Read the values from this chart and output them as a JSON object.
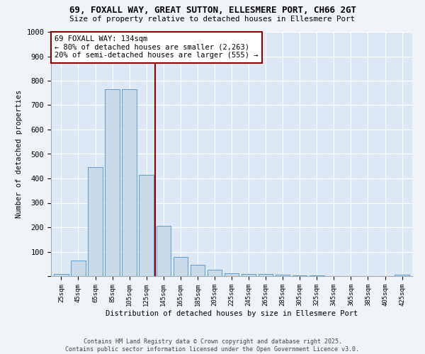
{
  "title_line1": "69, FOXALL WAY, GREAT SUTTON, ELLESMERE PORT, CH66 2GT",
  "title_line2": "Size of property relative to detached houses in Ellesmere Port",
  "xlabel": "Distribution of detached houses by size in Ellesmere Port",
  "ylabel": "Number of detached properties",
  "categories": [
    "25sqm",
    "45sqm",
    "65sqm",
    "85sqm",
    "105sqm",
    "125sqm",
    "145sqm",
    "165sqm",
    "185sqm",
    "205sqm",
    "225sqm",
    "245sqm",
    "265sqm",
    "285sqm",
    "305sqm",
    "325sqm",
    "345sqm",
    "365sqm",
    "385sqm",
    "405sqm",
    "425sqm"
  ],
  "values": [
    8,
    65,
    445,
    765,
    765,
    415,
    205,
    78,
    45,
    25,
    12,
    10,
    8,
    5,
    3,
    2,
    1,
    1,
    0,
    0,
    5
  ],
  "bar_color": "#c9d9e8",
  "bar_edge_color": "#5b9bd5",
  "vline_x": 5.5,
  "annotation_line1": "69 FOXALL WAY: 134sqm",
  "annotation_line2": "← 80% of detached houses are smaller (2,263)",
  "annotation_line3": "20% of semi-detached houses are larger (555) →",
  "annotation_box_color": "#ffffff",
  "annotation_box_edge": "#8b0000",
  "vline_color": "#8b0000",
  "bg_color": "#dce8f5",
  "fig_bg_color": "#f0f4f8",
  "ylim": [
    0,
    1000
  ],
  "yticks": [
    0,
    100,
    200,
    300,
    400,
    500,
    600,
    700,
    800,
    900,
    1000
  ],
  "footer_line1": "Contains HM Land Registry data © Crown copyright and database right 2025.",
  "footer_line2": "Contains public sector information licensed under the Open Government Licence v3.0."
}
